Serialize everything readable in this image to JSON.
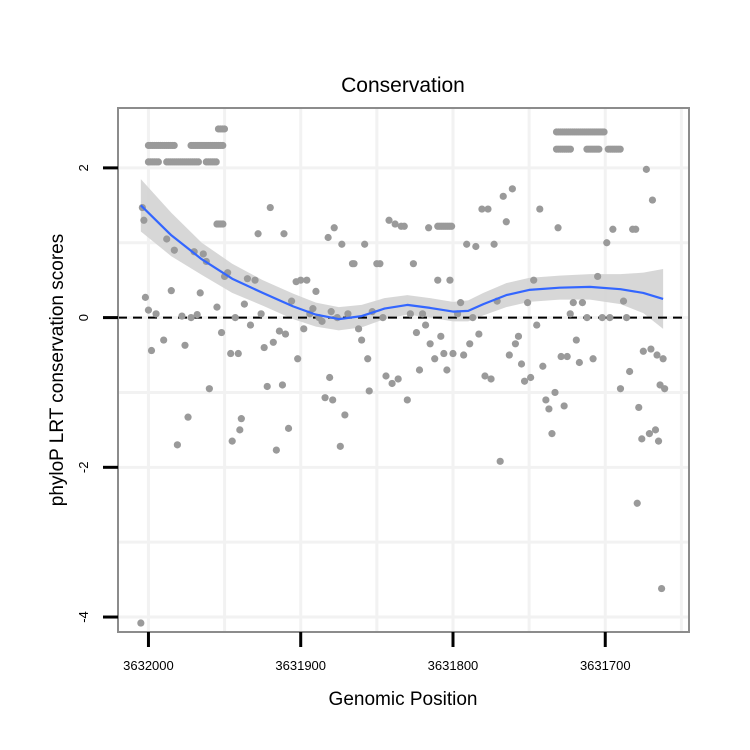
{
  "chart_data": {
    "type": "scatter",
    "title": "Conservation",
    "xlabel": "Genomic Position",
    "ylabel": "phyloP LRT conservation scores",
    "x_reversed": true,
    "xlim": [
      3632020,
      3631645
    ],
    "ylim": [
      -4.2,
      2.8
    ],
    "x_ticks": [
      3632000,
      3631900,
      3631800,
      3631700
    ],
    "x_tick_labels": [
      "3632000",
      "3631900",
      "3631800",
      "3631700"
    ],
    "y_ticks": [
      -4,
      -2,
      0,
      2
    ],
    "y_tick_labels": [
      "-4",
      "-2",
      "0",
      "2"
    ],
    "reference_line": {
      "y": 0,
      "style": "dashed"
    },
    "grid": true,
    "colors": {
      "points": "#9a9a9a",
      "smooth_line": "#3366ff",
      "confidence_band": "#d3d3d3",
      "panel_border": "#8c8c8c",
      "grid": "#f2f2f2"
    },
    "points": [
      [
        3632005,
        -4.08
      ],
      [
        3632004,
        1.47
      ],
      [
        3632003,
        1.3
      ],
      [
        3632002,
        0.27
      ],
      [
        3632000,
        0.1
      ],
      [
        3631998,
        -0.44
      ],
      [
        3631995,
        0.05
      ],
      [
        3631990,
        -0.3
      ],
      [
        3631988,
        1.05
      ],
      [
        3631985,
        0.36
      ],
      [
        3631983,
        0.9
      ],
      [
        3631981,
        -1.7
      ],
      [
        3631978,
        0.02
      ],
      [
        3631976,
        -0.37
      ],
      [
        3631974,
        -1.33
      ],
      [
        3631972,
        0.0
      ],
      [
        3631970,
        0.88
      ],
      [
        3631968,
        0.04
      ],
      [
        3631966,
        0.33
      ],
      [
        3631964,
        0.85
      ],
      [
        3631962,
        0.75
      ],
      [
        3631960,
        -0.95
      ],
      [
        3631955,
        0.14
      ],
      [
        3631952,
        -0.2
      ],
      [
        3631950,
        0.55
      ],
      [
        3631948,
        0.6
      ],
      [
        3631946,
        -0.48
      ],
      [
        3631945,
        -1.65
      ],
      [
        3631943,
        0.0
      ],
      [
        3631941,
        -0.48
      ],
      [
        3631940,
        -1.5
      ],
      [
        3631939,
        -1.35
      ],
      [
        3631937,
        0.18
      ],
      [
        3631935,
        0.52
      ],
      [
        3631933,
        -0.1
      ],
      [
        3631930,
        0.5
      ],
      [
        3631928,
        1.12
      ],
      [
        3631926,
        0.05
      ],
      [
        3631924,
        -0.4
      ],
      [
        3631922,
        -0.92
      ],
      [
        3631920,
        1.47
      ],
      [
        3631918,
        -0.33
      ],
      [
        3631916,
        -1.77
      ],
      [
        3631914,
        -0.18
      ],
      [
        3631912,
        -0.9
      ],
      [
        3631911,
        1.12
      ],
      [
        3631910,
        -0.22
      ],
      [
        3631908,
        -1.48
      ],
      [
        3631906,
        0.22
      ],
      [
        3631903,
        0.48
      ],
      [
        3631902,
        -0.55
      ],
      [
        3631900,
        0.5
      ],
      [
        3631898,
        -0.15
      ],
      [
        3631896,
        0.5
      ],
      [
        3631894,
        0.05
      ],
      [
        3631892,
        0.12
      ],
      [
        3631890,
        0.35
      ],
      [
        3631888,
        0.0
      ],
      [
        3631886,
        -0.05
      ],
      [
        3631884,
        -1.07
      ],
      [
        3631882,
        1.07
      ],
      [
        3631881,
        -0.8
      ],
      [
        3631880,
        0.08
      ],
      [
        3631879,
        -1.1
      ],
      [
        3631878,
        1.2
      ],
      [
        3631876,
        0.0
      ],
      [
        3631874,
        -1.72
      ],
      [
        3631873,
        0.98
      ],
      [
        3631871,
        -1.3
      ],
      [
        3631869,
        0.05
      ],
      [
        3631866,
        0.72
      ],
      [
        3631865,
        0.72
      ],
      [
        3631862,
        -0.15
      ],
      [
        3631860,
        -0.3
      ],
      [
        3631858,
        0.98
      ],
      [
        3631856,
        -0.55
      ],
      [
        3631855,
        -0.98
      ],
      [
        3631853,
        0.08
      ],
      [
        3631850,
        0.72
      ],
      [
        3631848,
        0.72
      ],
      [
        3631846,
        0.0
      ],
      [
        3631844,
        -0.78
      ],
      [
        3631842,
        1.3
      ],
      [
        3631840,
        -0.88
      ],
      [
        3631838,
        1.25
      ],
      [
        3631836,
        -0.82
      ],
      [
        3631834,
        1.22
      ],
      [
        3631832,
        1.22
      ],
      [
        3631830,
        -1.1
      ],
      [
        3631828,
        0.05
      ],
      [
        3631826,
        0.72
      ],
      [
        3631824,
        -0.2
      ],
      [
        3631822,
        -0.7
      ],
      [
        3631820,
        0.05
      ],
      [
        3631818,
        -0.1
      ],
      [
        3631816,
        1.2
      ],
      [
        3631815,
        -0.35
      ],
      [
        3631812,
        -0.55
      ],
      [
        3631810,
        0.5
      ],
      [
        3631808,
        -0.25
      ],
      [
        3631806,
        -0.48
      ],
      [
        3631804,
        -0.7
      ],
      [
        3631802,
        0.5
      ],
      [
        3631800,
        -0.48
      ],
      [
        3631797,
        0.05
      ],
      [
        3631795,
        0.2
      ],
      [
        3631793,
        -0.5
      ],
      [
        3631791,
        0.98
      ],
      [
        3631789,
        -0.35
      ],
      [
        3631787,
        0.0
      ],
      [
        3631785,
        0.95
      ],
      [
        3631783,
        -0.22
      ],
      [
        3631781,
        1.45
      ],
      [
        3631779,
        -0.78
      ],
      [
        3631777,
        1.45
      ],
      [
        3631775,
        -0.82
      ],
      [
        3631773,
        0.98
      ],
      [
        3631771,
        0.22
      ],
      [
        3631769,
        -1.92
      ],
      [
        3631767,
        1.62
      ],
      [
        3631765,
        1.28
      ],
      [
        3631763,
        -0.5
      ],
      [
        3631761,
        1.72
      ],
      [
        3631759,
        -0.35
      ],
      [
        3631757,
        -0.25
      ],
      [
        3631755,
        -0.62
      ],
      [
        3631753,
        -0.85
      ],
      [
        3631751,
        0.2
      ],
      [
        3631749,
        -0.8
      ],
      [
        3631747,
        0.5
      ],
      [
        3631745,
        -0.1
      ],
      [
        3631743,
        1.45
      ],
      [
        3631741,
        -0.65
      ],
      [
        3631739,
        -1.1
      ],
      [
        3631737,
        -1.22
      ],
      [
        3631735,
        -1.55
      ],
      [
        3631733,
        -1.0
      ],
      [
        3631731,
        1.2
      ],
      [
        3631729,
        -0.52
      ],
      [
        3631727,
        -1.18
      ],
      [
        3631725,
        -0.52
      ],
      [
        3631723,
        0.05
      ],
      [
        3631721,
        0.2
      ],
      [
        3631719,
        -0.3
      ],
      [
        3631717,
        -0.6
      ],
      [
        3631715,
        0.2
      ],
      [
        3631712,
        0.0
      ],
      [
        3631708,
        -0.55
      ],
      [
        3631705,
        0.55
      ],
      [
        3631702,
        0.0
      ],
      [
        3631699,
        1.0
      ],
      [
        3631697,
        0.0
      ],
      [
        3631695,
        1.18
      ],
      [
        3631690,
        -0.95
      ],
      [
        3631688,
        0.22
      ],
      [
        3631686,
        0.0
      ],
      [
        3631684,
        -0.72
      ],
      [
        3631682,
        1.18
      ],
      [
        3631680,
        1.18
      ],
      [
        3631679,
        -2.48
      ],
      [
        3631678,
        -1.2
      ],
      [
        3631676,
        -1.62
      ],
      [
        3631675,
        -0.45
      ],
      [
        3631673,
        1.98
      ],
      [
        3631671,
        -1.55
      ],
      [
        3631670,
        -0.42
      ],
      [
        3631669,
        1.57
      ],
      [
        3631667,
        -1.5
      ],
      [
        3631666,
        -0.5
      ],
      [
        3631665,
        -1.65
      ],
      [
        3631664,
        -0.9
      ],
      [
        3631663,
        -3.62
      ],
      [
        3631662,
        -0.55
      ],
      [
        3631661,
        -0.95
      ]
    ],
    "point_clusters": [
      {
        "y": 2.3,
        "x_range": [
          3632000,
          3631982
        ]
      },
      {
        "y": 2.08,
        "x_range": [
          3632000,
          3631993
        ]
      },
      {
        "y": 2.08,
        "x_range": [
          3631988,
          3631966
        ]
      },
      {
        "y": 2.3,
        "x_range": [
          3631972,
          3631950
        ]
      },
      {
        "y": 2.08,
        "x_range": [
          3631962,
          3631955
        ]
      },
      {
        "y": 2.52,
        "x_range": [
          3631954,
          3631950
        ]
      },
      {
        "y": 1.25,
        "x_range": [
          3631955,
          3631950
        ]
      },
      {
        "y": 1.22,
        "x_range": [
          3631810,
          3631800
        ]
      },
      {
        "y": 2.48,
        "x_range": [
          3631732,
          3631700
        ]
      },
      {
        "y": 2.25,
        "x_range": [
          3631732,
          3631722
        ]
      },
      {
        "y": 2.25,
        "x_range": [
          3631712,
          3631704
        ]
      },
      {
        "y": 2.25,
        "x_range": [
          3631698,
          3631690
        ]
      }
    ],
    "smooth": [
      [
        3632005,
        1.5
      ],
      [
        3631985,
        1.1
      ],
      [
        3631965,
        0.78
      ],
      [
        3631945,
        0.52
      ],
      [
        3631925,
        0.33
      ],
      [
        3631905,
        0.15
      ],
      [
        3631890,
        0.04
      ],
      [
        3631875,
        -0.02
      ],
      [
        3631860,
        0.02
      ],
      [
        3631845,
        0.12
      ],
      [
        3631830,
        0.17
      ],
      [
        3631815,
        0.13
      ],
      [
        3631800,
        0.08
      ],
      [
        3631790,
        0.09
      ],
      [
        3631780,
        0.18
      ],
      [
        3631765,
        0.3
      ],
      [
        3631750,
        0.37
      ],
      [
        3631730,
        0.4
      ],
      [
        3631710,
        0.41
      ],
      [
        3631690,
        0.38
      ],
      [
        3631675,
        0.33
      ],
      [
        3631662,
        0.25
      ]
    ],
    "band_upper": [
      [
        3632005,
        1.85
      ],
      [
        3631985,
        1.4
      ],
      [
        3631965,
        1.0
      ],
      [
        3631945,
        0.72
      ],
      [
        3631925,
        0.5
      ],
      [
        3631905,
        0.32
      ],
      [
        3631890,
        0.2
      ],
      [
        3631875,
        0.14
      ],
      [
        3631860,
        0.17
      ],
      [
        3631845,
        0.26
      ],
      [
        3631830,
        0.3
      ],
      [
        3631815,
        0.26
      ],
      [
        3631800,
        0.21
      ],
      [
        3631790,
        0.23
      ],
      [
        3631780,
        0.33
      ],
      [
        3631765,
        0.46
      ],
      [
        3631750,
        0.53
      ],
      [
        3631730,
        0.56
      ],
      [
        3631710,
        0.58
      ],
      [
        3631690,
        0.58
      ],
      [
        3631675,
        0.6
      ],
      [
        3631662,
        0.65
      ]
    ],
    "band_lower": [
      [
        3632005,
        1.15
      ],
      [
        3631985,
        0.82
      ],
      [
        3631965,
        0.57
      ],
      [
        3631945,
        0.33
      ],
      [
        3631925,
        0.16
      ],
      [
        3631905,
        -0.02
      ],
      [
        3631890,
        -0.12
      ],
      [
        3631875,
        -0.17
      ],
      [
        3631860,
        -0.13
      ],
      [
        3631845,
        -0.02
      ],
      [
        3631830,
        0.04
      ],
      [
        3631815,
        0.0
      ],
      [
        3631800,
        -0.05
      ],
      [
        3631790,
        -0.05
      ],
      [
        3631780,
        0.03
      ],
      [
        3631765,
        0.14
      ],
      [
        3631750,
        0.21
      ],
      [
        3631730,
        0.24
      ],
      [
        3631710,
        0.24
      ],
      [
        3631690,
        0.18
      ],
      [
        3631675,
        0.06
      ],
      [
        3631662,
        -0.15
      ]
    ]
  }
}
